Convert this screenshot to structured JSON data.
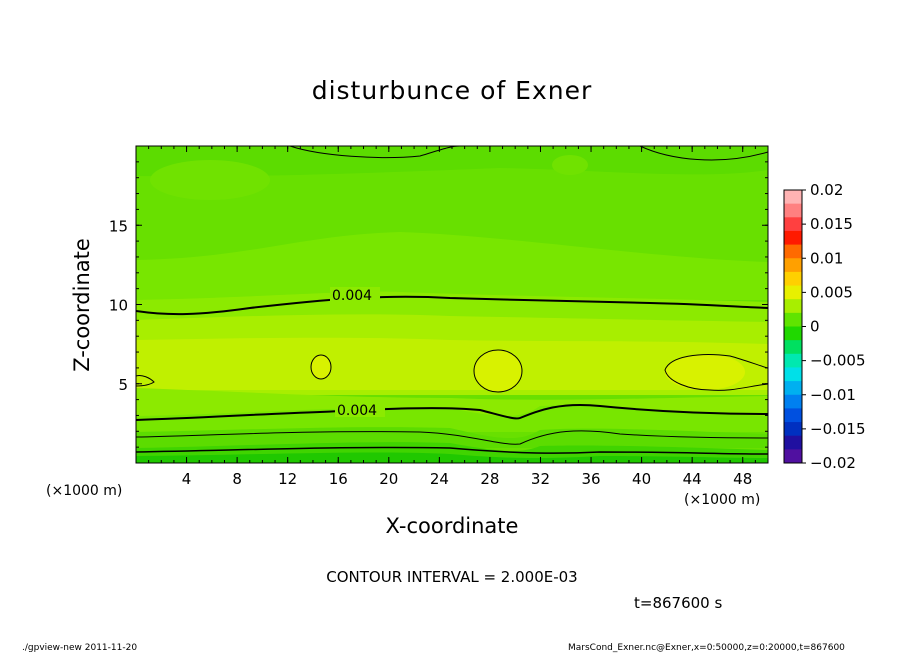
{
  "chart_data": {
    "type": "heatmap",
    "title": "disturbunce of Exner",
    "xlabel": "X-coordinate",
    "ylabel": "Z-coordinate",
    "x_unit_label": "(×1000 m)",
    "xlim": [
      0,
      50
    ],
    "ylim": [
      0,
      20
    ],
    "x_ticks": [
      4,
      8,
      12,
      16,
      20,
      24,
      28,
      32,
      36,
      40,
      44,
      48
    ],
    "y_ticks": [
      5,
      10,
      15
    ],
    "colorbar": {
      "range": [
        -0.02,
        0.02
      ],
      "tick_values": [
        0.02,
        0.015,
        0.01,
        0.005,
        0,
        -0.005,
        -0.01,
        -0.015,
        -0.02
      ],
      "tick_labels": [
        "0.02",
        "0.015",
        "0.01",
        "0.005",
        "0",
        "−0.005",
        "−0.01",
        "−0.015",
        "−0.02"
      ],
      "colors_top_to_bottom": [
        "#ffb3b3",
        "#ff8080",
        "#ff4040",
        "#ff1a00",
        "#ff6a00",
        "#ffa000",
        "#ffd000",
        "#e8f000",
        "#a8ee00",
        "#60e400",
        "#20d800",
        "#00e060",
        "#00e8b0",
        "#00e0e8",
        "#00b0f0",
        "#0080f0",
        "#0050e0",
        "#0030c0",
        "#2010a0",
        "#5010a0"
      ]
    },
    "contour_labels": [
      {
        "text": "0.004",
        "x": 16.6,
        "z": 10.5
      },
      {
        "text": "0.004",
        "x": 17.2,
        "z": 3.1
      }
    ],
    "contour_interval_text": "CONTOUR INTERVAL = 2.000E-03",
    "time_text": "t=867600 s"
  },
  "footer": {
    "left": "./gpview-new   2011-11-20",
    "right": "MarsCond_Exner.nc@Exner,x=0:50000,z=0:20000,t=867600"
  }
}
